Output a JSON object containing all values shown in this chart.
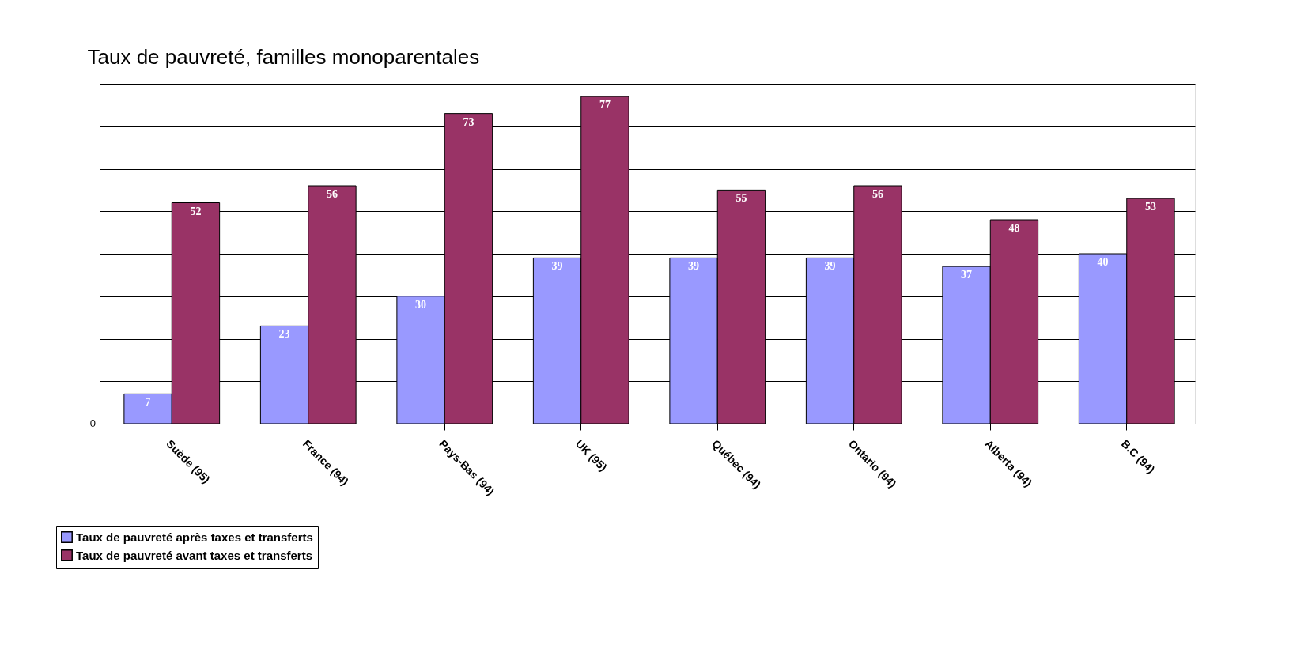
{
  "chart_data": {
    "type": "bar",
    "title": "Taux de pauvreté, familles monoparentales",
    "categories": [
      "Suède (95)",
      "France (94)",
      "Pays-Bas  (94)",
      "UK (95)",
      "Québec (94)",
      "Ontario (94)",
      "Alberta (94)",
      "B.C (94)"
    ],
    "series": [
      {
        "name": "Taux de pauvreté après taxes et transferts",
        "color": "#9999ff",
        "values": [
          7,
          23,
          30,
          39,
          39,
          39,
          37,
          40
        ]
      },
      {
        "name": "Taux de pauvreté avant taxes et transferts",
        "color": "#993366",
        "values": [
          52,
          56,
          73,
          77,
          55,
          56,
          48,
          53
        ]
      }
    ],
    "ylim": [
      0,
      80
    ],
    "annotations": [
      "0"
    ],
    "yticks": [
      {
        "value": 0,
        "label": null
      },
      {
        "value": 10,
        "label": null
      },
      {
        "value": 20,
        "label": null
      },
      {
        "value": 30,
        "label": null
      },
      {
        "value": 40,
        "label": null
      },
      {
        "value": 50,
        "label": null
      },
      {
        "value": 60,
        "label": null
      },
      {
        "value": 70,
        "label": null
      },
      {
        "value": 80,
        "label": null
      }
    ],
    "grid": "y",
    "legend": "bottom left",
    "data_labels": true
  }
}
